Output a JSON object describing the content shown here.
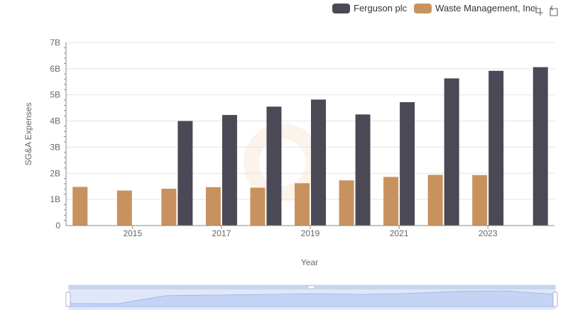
{
  "legend": [
    {
      "name": "Ferguson plc",
      "color": "#4a4955"
    },
    {
      "name": "Waste Management, Inc.",
      "color": "#c8925e"
    }
  ],
  "toolbox": {
    "icons": [
      "zoom-icon",
      "restore-icon"
    ]
  },
  "chart_data": {
    "type": "bar",
    "x": [
      2014,
      2015,
      2016,
      2017,
      2018,
      2019,
      2020,
      2021,
      2022,
      2023,
      2024
    ],
    "xtick_labels": [
      "2015",
      "2017",
      "2019",
      "2021",
      "2023"
    ],
    "xtick_values": [
      2015,
      2017,
      2019,
      2021,
      2023
    ],
    "series": [
      {
        "name": "Ferguson plc",
        "color": "#4a4955",
        "values": [
          null,
          null,
          4.0,
          4.23,
          4.55,
          4.82,
          4.25,
          4.72,
          5.63,
          5.92,
          6.06
        ]
      },
      {
        "name": "Waste Management, Inc.",
        "color": "#c8925e",
        "values": [
          1.48,
          1.34,
          1.41,
          1.47,
          1.45,
          1.62,
          1.73,
          1.86,
          1.94,
          1.93,
          null
        ]
      }
    ],
    "ytick_labels": [
      "0",
      "1B",
      "2B",
      "3B",
      "4B",
      "5B",
      "6B",
      "7B"
    ],
    "ylim": [
      0,
      7
    ],
    "xlabel": "Year",
    "ylabel": "SG&A Expenses",
    "grid": true,
    "legend_position": "top-right"
  }
}
